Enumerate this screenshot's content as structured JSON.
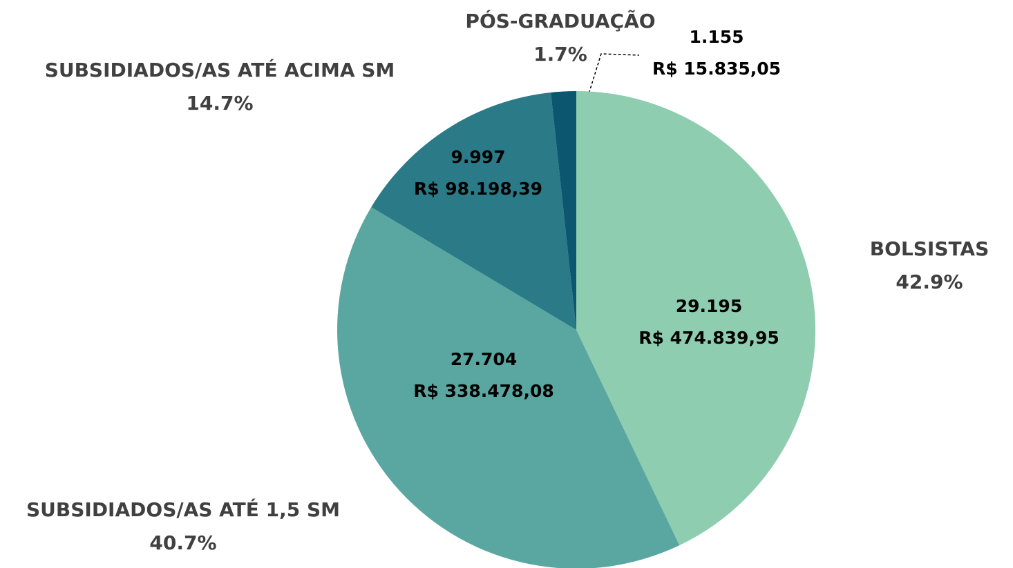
{
  "chart_data": {
    "type": "pie",
    "categories": [
      "BOLSISTAS",
      "SUBSIDIADOS/AS ATÉ 1,5 SM",
      "SUBSIDIADOS/AS ATÉ ACIMA SM",
      "PÓS-GRADUAÇÃO"
    ],
    "values": [
      42.9,
      40.7,
      14.7,
      1.7
    ],
    "value_labels": [
      "42.9%",
      "40.7%",
      "14.7%",
      "1.7%"
    ],
    "counts": [
      "29.195",
      "27.704",
      "9.997",
      "1.155"
    ],
    "amounts": [
      "R$ 474.839,95",
      "R$ 338.478,08",
      "R$ 98.198,39",
      "R$ 15.835,05"
    ],
    "colors": [
      "#8ecdb0",
      "#5aa6a0",
      "#2b7a87",
      "#0d5670"
    ]
  }
}
